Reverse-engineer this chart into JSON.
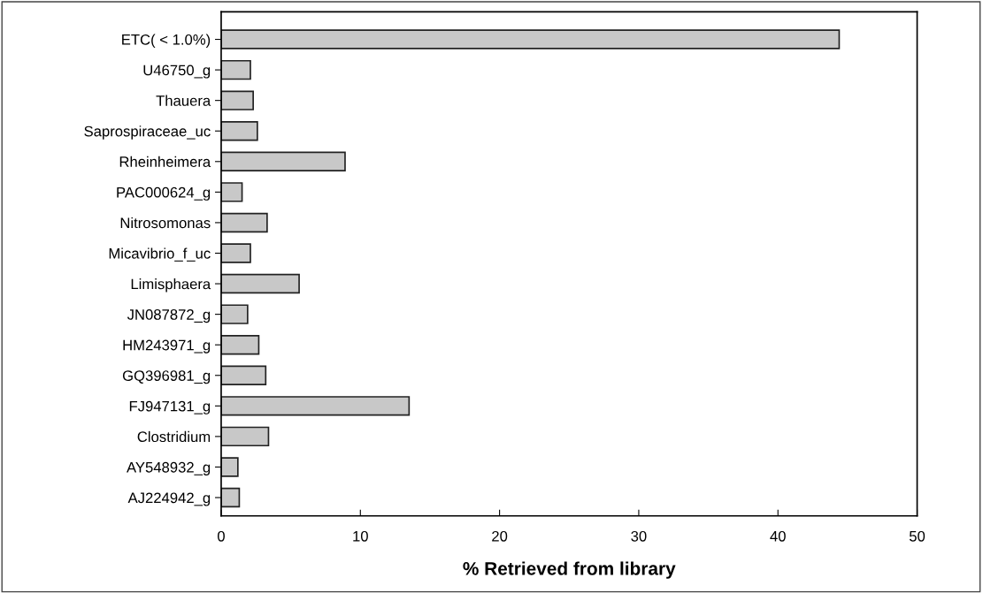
{
  "chart_data": {
    "type": "bar",
    "orientation": "horizontal",
    "xlabel": "% Retrieved from library",
    "categories": [
      "ETC( < 1.0%)",
      "U46750_g",
      "Thauera",
      "Saprospiraceae_uc",
      "Rheinheimera",
      "PAC000624_g",
      "Nitrosomonas",
      "Micavibrio_f_uc",
      "Limisphaera",
      "JN087872_g",
      "HM243971_g",
      "GQ396981_g",
      "FJ947131_g",
      "Clostridium",
      "AY548932_g",
      "AJ224942_g"
    ],
    "values": [
      44.4,
      2.1,
      2.3,
      2.6,
      8.9,
      1.5,
      3.3,
      2.1,
      5.6,
      1.9,
      2.7,
      3.2,
      13.5,
      3.4,
      1.2,
      1.3
    ],
    "color": "#c8c8c8",
    "xlim": [
      0,
      50
    ],
    "xticks": [
      0,
      10,
      20,
      30,
      40,
      50
    ],
    "grid": false
  }
}
